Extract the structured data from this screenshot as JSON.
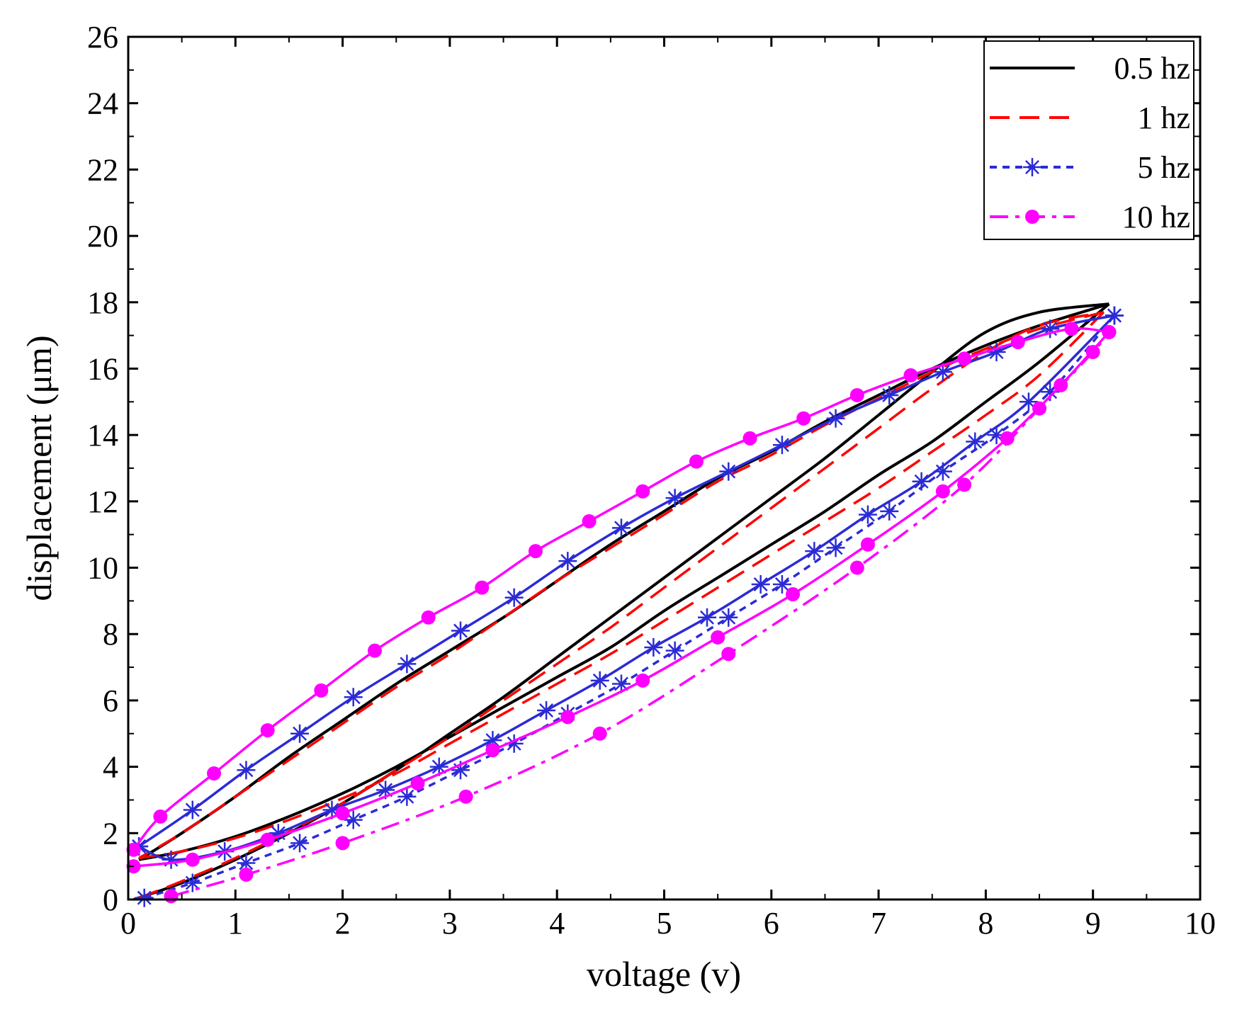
{
  "chart_data": {
    "type": "line",
    "title": "",
    "xlabel": "voltage (v)",
    "ylabel": "displacement (μm)",
    "xlim": [
      0,
      10
    ],
    "ylim": [
      0,
      26
    ],
    "xticks": [
      0,
      1,
      2,
      3,
      4,
      5,
      6,
      7,
      8,
      9,
      10
    ],
    "yticks": [
      0,
      2,
      4,
      6,
      8,
      10,
      12,
      14,
      16,
      18,
      20,
      22,
      24,
      26
    ],
    "grid": false,
    "legend_position": "top-right",
    "series": [
      {
        "name": "0.5 hz",
        "color": "#000000",
        "line": "solid",
        "marker": "none",
        "rising": [
          [
            0.05,
            0.0
          ],
          [
            0.5,
            0.5
          ],
          [
            1,
            1.2
          ],
          [
            1.5,
            2.0
          ],
          [
            2,
            2.9
          ],
          [
            2.5,
            3.9
          ],
          [
            3,
            5.0
          ],
          [
            3.5,
            6.1
          ],
          [
            4,
            7.3
          ],
          [
            4.5,
            8.5
          ],
          [
            5,
            9.7
          ],
          [
            5.5,
            10.9
          ],
          [
            6,
            12.1
          ],
          [
            6.5,
            13.3
          ],
          [
            7,
            14.6
          ],
          [
            7.5,
            15.9
          ],
          [
            8,
            17.1
          ],
          [
            8.5,
            17.7
          ],
          [
            9.15,
            17.95
          ]
        ],
        "falling": [
          [
            9.15,
            17.95
          ],
          [
            8.5,
            17.3
          ],
          [
            8,
            16.7
          ],
          [
            7.5,
            16.0
          ],
          [
            7,
            15.2
          ],
          [
            6.5,
            14.4
          ],
          [
            6,
            13.5
          ],
          [
            5.5,
            12.7
          ],
          [
            5,
            11.7
          ],
          [
            4.5,
            10.7
          ],
          [
            4,
            9.6
          ],
          [
            3.5,
            8.5
          ],
          [
            3,
            7.5
          ],
          [
            2.5,
            6.5
          ],
          [
            2,
            5.4
          ],
          [
            1.5,
            4.3
          ],
          [
            1,
            3.1
          ],
          [
            0.5,
            2.0
          ],
          [
            0.1,
            1.2
          ]
        ],
        "return": [
          [
            0.1,
            1.2
          ],
          [
            0.5,
            1.45
          ],
          [
            1,
            1.9
          ],
          [
            1.5,
            2.5
          ],
          [
            2,
            3.2
          ],
          [
            2.5,
            4.0
          ],
          [
            3,
            4.9
          ],
          [
            3.5,
            5.8
          ],
          [
            4,
            6.7
          ],
          [
            4.5,
            7.6
          ],
          [
            5,
            8.7
          ],
          [
            5.5,
            9.7
          ],
          [
            6,
            10.7
          ],
          [
            6.5,
            11.7
          ],
          [
            7,
            12.8
          ],
          [
            7.5,
            13.8
          ],
          [
            8,
            15.0
          ],
          [
            8.5,
            16.2
          ],
          [
            9.15,
            17.95
          ]
        ]
      },
      {
        "name": "1 hz",
        "color": "#ff0000",
        "line": "dashed",
        "marker": "none",
        "rising": [
          [
            0.1,
            0.05
          ],
          [
            0.5,
            0.55
          ],
          [
            1,
            1.25
          ],
          [
            1.5,
            2.05
          ],
          [
            2,
            2.9
          ],
          [
            2.5,
            3.9
          ],
          [
            3,
            4.9
          ],
          [
            3.5,
            6.0
          ],
          [
            4,
            7.1
          ],
          [
            4.5,
            8.2
          ],
          [
            5,
            9.4
          ],
          [
            5.5,
            10.6
          ],
          [
            6,
            11.8
          ],
          [
            6.5,
            13.0
          ],
          [
            7,
            14.2
          ],
          [
            7.5,
            15.4
          ],
          [
            8,
            16.5
          ],
          [
            8.5,
            17.3
          ],
          [
            9.1,
            17.7
          ]
        ],
        "falling": [
          [
            9.1,
            17.7
          ],
          [
            8.5,
            17.2
          ],
          [
            8,
            16.6
          ],
          [
            7.5,
            15.9
          ],
          [
            7,
            15.1
          ],
          [
            6.5,
            14.3
          ],
          [
            6,
            13.4
          ],
          [
            5.5,
            12.6
          ],
          [
            5,
            11.6
          ],
          [
            4.5,
            10.6
          ],
          [
            4,
            9.6
          ],
          [
            3.5,
            8.5
          ],
          [
            3,
            7.4
          ],
          [
            2.5,
            6.4
          ],
          [
            2,
            5.3
          ],
          [
            1.5,
            4.2
          ],
          [
            1,
            3.1
          ],
          [
            0.5,
            2.0
          ],
          [
            0.1,
            1.25
          ]
        ],
        "return": [
          [
            0.1,
            1.25
          ],
          [
            0.5,
            1.45
          ],
          [
            1,
            1.85
          ],
          [
            1.5,
            2.4
          ],
          [
            2,
            3.05
          ],
          [
            2.5,
            3.8
          ],
          [
            3,
            4.7
          ],
          [
            3.5,
            5.6
          ],
          [
            4,
            6.5
          ],
          [
            4.5,
            7.4
          ],
          [
            5,
            8.4
          ],
          [
            5.5,
            9.4
          ],
          [
            6,
            10.4
          ],
          [
            6.5,
            11.4
          ],
          [
            7,
            12.4
          ],
          [
            7.5,
            13.5
          ],
          [
            8,
            14.6
          ],
          [
            8.5,
            15.8
          ],
          [
            9.1,
            17.7
          ]
        ]
      },
      {
        "name": "5 hz",
        "color": "#2b2bd6",
        "line": "dotted",
        "marker": "asterisk",
        "rising": [
          [
            0.15,
            0.05
          ],
          [
            0.6,
            0.5
          ],
          [
            1.1,
            1.1
          ],
          [
            1.6,
            1.7
          ],
          [
            2.1,
            2.4
          ],
          [
            2.6,
            3.1
          ],
          [
            3.1,
            3.9
          ],
          [
            3.6,
            4.7
          ],
          [
            4.1,
            5.6
          ],
          [
            4.6,
            6.5
          ],
          [
            5.1,
            7.5
          ],
          [
            5.6,
            8.5
          ],
          [
            6.1,
            9.5
          ],
          [
            6.6,
            10.6
          ],
          [
            7.1,
            11.7
          ],
          [
            7.6,
            12.9
          ],
          [
            8.1,
            14.0
          ],
          [
            8.6,
            15.3
          ],
          [
            9.2,
            17.6
          ]
        ],
        "falling": [
          [
            9.2,
            17.6
          ],
          [
            8.6,
            17.2
          ],
          [
            8.1,
            16.5
          ],
          [
            7.6,
            15.9
          ],
          [
            7.1,
            15.2
          ],
          [
            6.6,
            14.5
          ],
          [
            6.1,
            13.7
          ],
          [
            5.6,
            12.9
          ],
          [
            5.1,
            12.1
          ],
          [
            4.6,
            11.2
          ],
          [
            4.1,
            10.2
          ],
          [
            3.6,
            9.1
          ],
          [
            3.1,
            8.1
          ],
          [
            2.6,
            7.1
          ],
          [
            2.1,
            6.1
          ],
          [
            1.6,
            5.0
          ],
          [
            1.1,
            3.9
          ],
          [
            0.6,
            2.7
          ],
          [
            0.1,
            1.6
          ]
        ],
        "return": [
          [
            0.1,
            1.6
          ],
          [
            0.4,
            1.2
          ],
          [
            0.9,
            1.45
          ],
          [
            1.4,
            2.0
          ],
          [
            1.9,
            2.7
          ],
          [
            2.4,
            3.3
          ],
          [
            2.9,
            4.0
          ],
          [
            3.4,
            4.8
          ],
          [
            3.9,
            5.7
          ],
          [
            4.4,
            6.6
          ],
          [
            4.9,
            7.6
          ],
          [
            5.4,
            8.5
          ],
          [
            5.9,
            9.5
          ],
          [
            6.4,
            10.5
          ],
          [
            6.9,
            11.6
          ],
          [
            7.4,
            12.6
          ],
          [
            7.9,
            13.8
          ],
          [
            8.4,
            15.0
          ],
          [
            9.2,
            17.6
          ]
        ]
      },
      {
        "name": "10 hz",
        "color": "#ff00ff",
        "line": "dashdot",
        "marker": "circle",
        "rising": [
          [
            0.4,
            0.1
          ],
          [
            1.1,
            0.75
          ],
          [
            2.0,
            1.7
          ],
          [
            3.15,
            3.1
          ],
          [
            4.4,
            5.0
          ],
          [
            5.6,
            7.4
          ],
          [
            6.8,
            10.0
          ],
          [
            7.8,
            12.5
          ],
          [
            8.5,
            14.8
          ],
          [
            9.0,
            16.5
          ],
          [
            9.15,
            17.1
          ]
        ],
        "falling": [
          [
            9.15,
            17.1
          ],
          [
            8.8,
            17.2
          ],
          [
            8.3,
            16.8
          ],
          [
            7.8,
            16.3
          ],
          [
            7.3,
            15.8
          ],
          [
            6.8,
            15.2
          ],
          [
            6.3,
            14.5
          ],
          [
            5.8,
            13.9
          ],
          [
            5.3,
            13.2
          ],
          [
            4.8,
            12.3
          ],
          [
            4.3,
            11.4
          ],
          [
            3.8,
            10.5
          ],
          [
            3.3,
            9.4
          ],
          [
            2.8,
            8.5
          ],
          [
            2.3,
            7.5
          ],
          [
            1.8,
            6.3
          ],
          [
            1.3,
            5.1
          ],
          [
            0.8,
            3.8
          ],
          [
            0.3,
            2.5
          ],
          [
            0.05,
            1.5
          ]
        ],
        "return": [
          [
            0.05,
            1.0
          ],
          [
            0.6,
            1.2
          ],
          [
            1.3,
            1.8
          ],
          [
            2.0,
            2.6
          ],
          [
            2.7,
            3.5
          ],
          [
            3.4,
            4.5
          ],
          [
            4.1,
            5.5
          ],
          [
            4.8,
            6.6
          ],
          [
            5.5,
            7.9
          ],
          [
            6.2,
            9.2
          ],
          [
            6.9,
            10.7
          ],
          [
            7.6,
            12.3
          ],
          [
            8.2,
            13.9
          ],
          [
            8.7,
            15.5
          ],
          [
            9.15,
            17.1
          ]
        ]
      }
    ]
  }
}
